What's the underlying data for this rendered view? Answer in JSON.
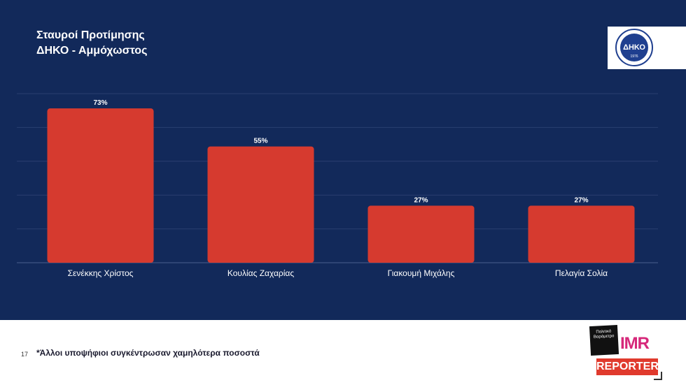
{
  "title": {
    "line1": "Σταυροί Προτίμησης",
    "line2": "ΔΗΚΟ - Αμμόχωστος"
  },
  "logo": {
    "text": "ΔΗΚΟ",
    "year": "1976"
  },
  "footer": {
    "page_number": "17",
    "note": "*Άλλοι υποψήφιοι συγκέντρωσαν χαμηλότερα ποσοστά",
    "brand_politiko": "Πολιτικό Βαρόμετρο",
    "brand_imr": "IMR",
    "brand_reporter": "REPORTER"
  },
  "colors": {
    "background": "#12295a",
    "bar": "#d63a2f",
    "text": "#ffffff"
  },
  "chart_data": {
    "type": "bar",
    "categories": [
      "Σενέκκης Χρίστος",
      "Κουλίας Ζαχαρίας",
      "Γιακουμή Μιχάλης",
      "Πελαγία Σολία"
    ],
    "values": [
      73,
      55,
      27,
      27
    ],
    "data_labels": [
      "73%",
      "55%",
      "27%",
      "27%"
    ],
    "ylim": [
      0,
      80
    ],
    "grid": true
  }
}
